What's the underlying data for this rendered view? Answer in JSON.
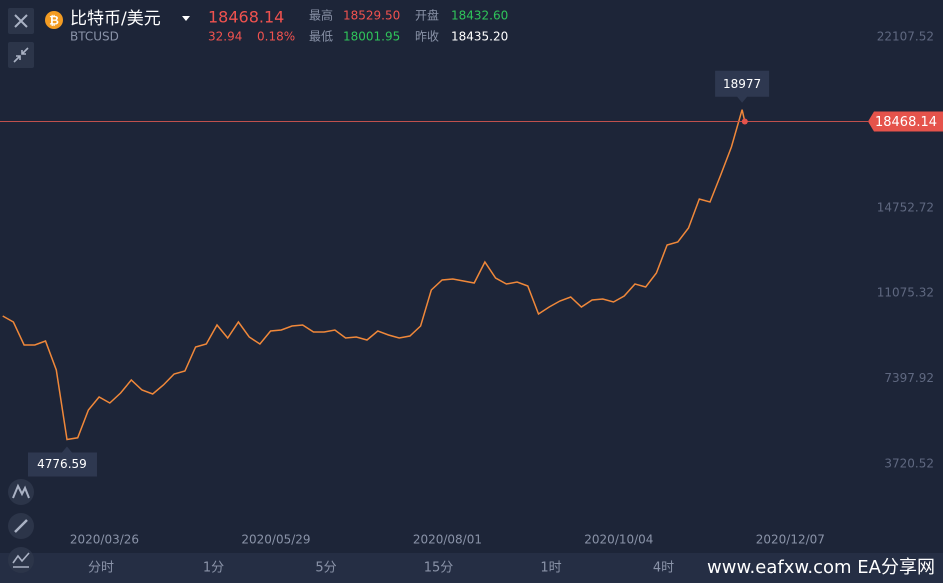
{
  "header": {
    "title": "比特币/美元",
    "symbol": "BTCUSD",
    "price": "18468.14",
    "change": "32.94",
    "change_pct": "0.18%",
    "high_label": "最高",
    "high": "18529.50",
    "low_label": "最低",
    "low": "18001.95",
    "open_label": "开盘",
    "open": "18432.60",
    "prev_label": "昨收",
    "prev_close": "18435.20"
  },
  "toolbar": {
    "timeframes": [
      "分时",
      "1分",
      "5分",
      "15分",
      "1时",
      "4时"
    ]
  },
  "watermark": "www.eafxw.com  EA分享网",
  "chart_data": {
    "type": "line",
    "series": [
      {
        "name": "BTCUSD",
        "color": "#f0883a",
        "x": [
          "2020/02/17",
          "2020/02/21",
          "2020/02/25",
          "2020/02/29",
          "2020/03/04",
          "2020/03/08",
          "2020/03/12",
          "2020/03/16",
          "2020/03/20",
          "2020/03/24",
          "2020/03/28",
          "2020/04/01",
          "2020/04/05",
          "2020/04/09",
          "2020/04/13",
          "2020/04/17",
          "2020/04/21",
          "2020/04/25",
          "2020/04/29",
          "2020/05/03",
          "2020/05/07",
          "2020/05/11",
          "2020/05/15",
          "2020/05/19",
          "2020/05/23",
          "2020/05/27",
          "2020/05/31",
          "2020/06/04",
          "2020/06/08",
          "2020/06/12",
          "2020/06/16",
          "2020/06/20",
          "2020/06/24",
          "2020/06/28",
          "2020/07/02",
          "2020/07/06",
          "2020/07/10",
          "2020/07/14",
          "2020/07/18",
          "2020/07/22",
          "2020/07/26",
          "2020/07/30",
          "2020/08/03",
          "2020/08/07",
          "2020/08/11",
          "2020/08/15",
          "2020/08/19",
          "2020/08/23",
          "2020/08/27",
          "2020/08/31",
          "2020/09/04",
          "2020/09/08",
          "2020/09/12",
          "2020/09/16",
          "2020/09/20",
          "2020/09/24",
          "2020/09/28",
          "2020/10/02",
          "2020/10/06",
          "2020/10/10",
          "2020/10/14",
          "2020/10/18",
          "2020/10/22",
          "2020/10/26",
          "2020/10/30",
          "2020/11/03",
          "2020/11/07",
          "2020/11/11",
          "2020/11/15",
          "2020/11/19",
          "2020/11/20"
        ],
        "values": [
          10094,
          9836,
          8845,
          8845,
          9018,
          7769,
          4776.59,
          4850,
          6046,
          6606,
          6348,
          6778,
          7338,
          6908,
          6735,
          7123,
          7597,
          7726,
          8759,
          8888,
          9706,
          9147,
          9836,
          9190,
          8888,
          9448,
          9491,
          9663,
          9706,
          9405,
          9405,
          9491,
          9147,
          9190,
          9061,
          9448,
          9276,
          9147,
          9233,
          9663,
          11214,
          11644,
          11687,
          11601,
          11515,
          12419,
          11730,
          11472,
          11558,
          11386,
          10180,
          10482,
          10740,
          10912,
          10482,
          10783,
          10826,
          10697,
          10955,
          11472,
          11343,
          11946,
          13151,
          13280,
          13883,
          15132,
          15003,
          16165,
          17371,
          18977,
          18468.14
        ]
      }
    ],
    "annotations": {
      "high": 18977,
      "low": 4776.59,
      "current": 18468.14
    },
    "xlim": [
      "2020/02/16",
      "2021/01/02"
    ],
    "xticks": [
      "2020/03/26",
      "2020/05/29",
      "2020/08/01",
      "2020/10/04",
      "2020/12/07"
    ],
    "ylim": [
      1094,
      23701
    ],
    "yticks": [
      3720.52,
      7397.92,
      11075.32,
      14752.72,
      22107.52
    ],
    "grid": false
  }
}
